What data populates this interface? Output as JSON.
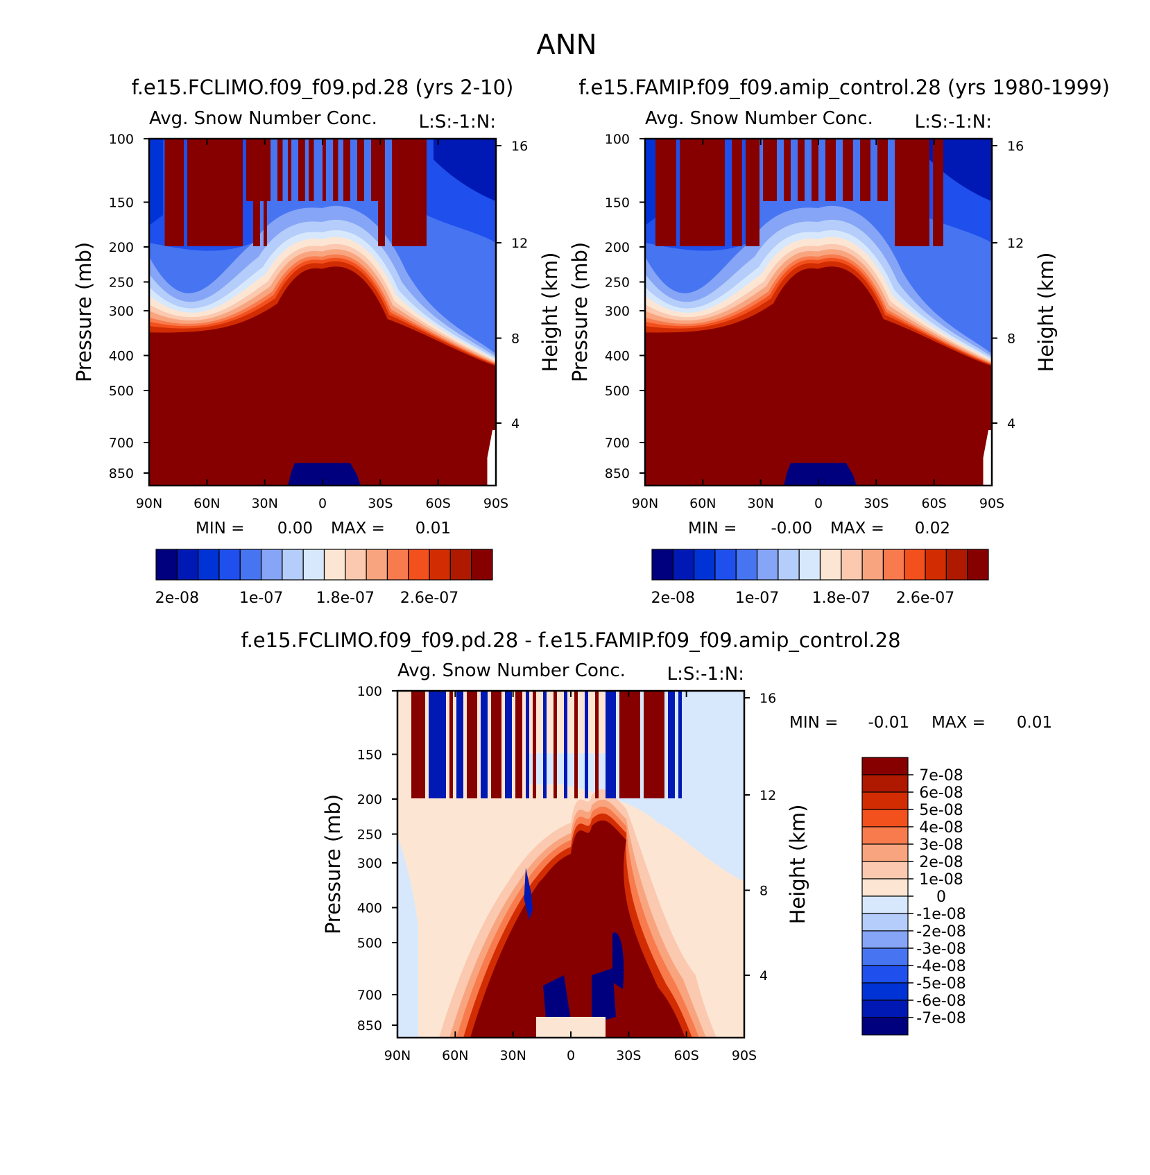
{
  "page": {
    "title": "ANN",
    "palette": {
      "abs": [
        "#00007f",
        "#0019b4",
        "#0033d6",
        "#1f4fec",
        "#4775f2",
        "#86a5f6",
        "#b4cdfa",
        "#d7e8fc",
        "#fce6d3",
        "#fbc9b0",
        "#f8a57f",
        "#f87b4e",
        "#f2501d",
        "#d22c03",
        "#ae1900",
        "#870000"
      ],
      "diff": [
        "#00007f",
        "#0019b4",
        "#0033d6",
        "#1f4fec",
        "#4775f2",
        "#86a5f6",
        "#b4cdfa",
        "#d7e8fc",
        "#fce6d3",
        "#fbc9b0",
        "#f8a57f",
        "#f87b4e",
        "#f2501d",
        "#d22c03",
        "#ae1900",
        "#870000"
      ]
    }
  },
  "chart_data": [
    {
      "type": "heatmap",
      "title": "f.e15.FCLIMO.f09_f09.pd.28 (yrs 2-10)",
      "subtitle": "Avg. Snow Number Conc.",
      "corner_label": "L:S:-1:N:",
      "xlabel": "",
      "ylabel": "Pressure (mb)",
      "ylabel_right": "Height (km)",
      "x_ticks": [
        "90N",
        "60N",
        "30N",
        "0",
        "30S",
        "60S",
        "90S"
      ],
      "y_ticks": [
        "100",
        "150",
        "200",
        "250",
        "300",
        "400",
        "500",
        "700",
        "850"
      ],
      "y_right_ticks": [
        "16",
        "12",
        "8",
        "4"
      ],
      "min_label": "MIN =",
      "min_value": "0.00",
      "max_label": "MAX =",
      "max_value": "0.01",
      "colorbar_labels": [
        "2e-08",
        "1e-07",
        "1.8e-07",
        "2.6e-07"
      ],
      "colorbar_levels": 16
    },
    {
      "type": "heatmap",
      "title": "f.e15.FAMIP.f09_f09.amip_control.28 (yrs 1980-1999)",
      "subtitle": "Avg. Snow Number Conc.",
      "corner_label": "L:S:-1:N:",
      "xlabel": "",
      "ylabel": "Pressure (mb)",
      "ylabel_right": "Height (km)",
      "x_ticks": [
        "90N",
        "60N",
        "30N",
        "0",
        "30S",
        "60S",
        "90S"
      ],
      "y_ticks": [
        "100",
        "150",
        "200",
        "250",
        "300",
        "400",
        "500",
        "700",
        "850"
      ],
      "y_right_ticks": [
        "16",
        "12",
        "8",
        "4"
      ],
      "min_label": "MIN =",
      "min_value": "-0.00",
      "max_label": "MAX =",
      "max_value": "0.02",
      "colorbar_labels": [
        "2e-08",
        "1e-07",
        "1.8e-07",
        "2.6e-07"
      ],
      "colorbar_levels": 16
    },
    {
      "type": "heatmap",
      "title": "f.e15.FCLIMO.f09_f09.pd.28 - f.e15.FAMIP.f09_f09.amip_control.28",
      "subtitle": "Avg. Snow Number Conc.",
      "corner_label": "L:S:-1:N:",
      "xlabel": "",
      "ylabel": "Pressure (mb)",
      "ylabel_right": "Height (km)",
      "x_ticks": [
        "90N",
        "60N",
        "30N",
        "0",
        "30S",
        "60S",
        "90S"
      ],
      "y_ticks": [
        "100",
        "150",
        "200",
        "250",
        "300",
        "400",
        "500",
        "700",
        "850"
      ],
      "y_right_ticks": [
        "16",
        "12",
        "8",
        "4"
      ],
      "min_label": "MIN =",
      "min_value": "-0.01",
      "max_label": "MAX =",
      "max_value": "0.01",
      "colorbar_labels": [
        "7e-08",
        "6e-08",
        "5e-08",
        "4e-08",
        "3e-08",
        "2e-08",
        "1e-08",
        "0",
        "-1e-08",
        "-2e-08",
        "-3e-08",
        "-4e-08",
        "-5e-08",
        "-6e-08",
        "-7e-08"
      ],
      "colorbar_levels": 16
    }
  ]
}
